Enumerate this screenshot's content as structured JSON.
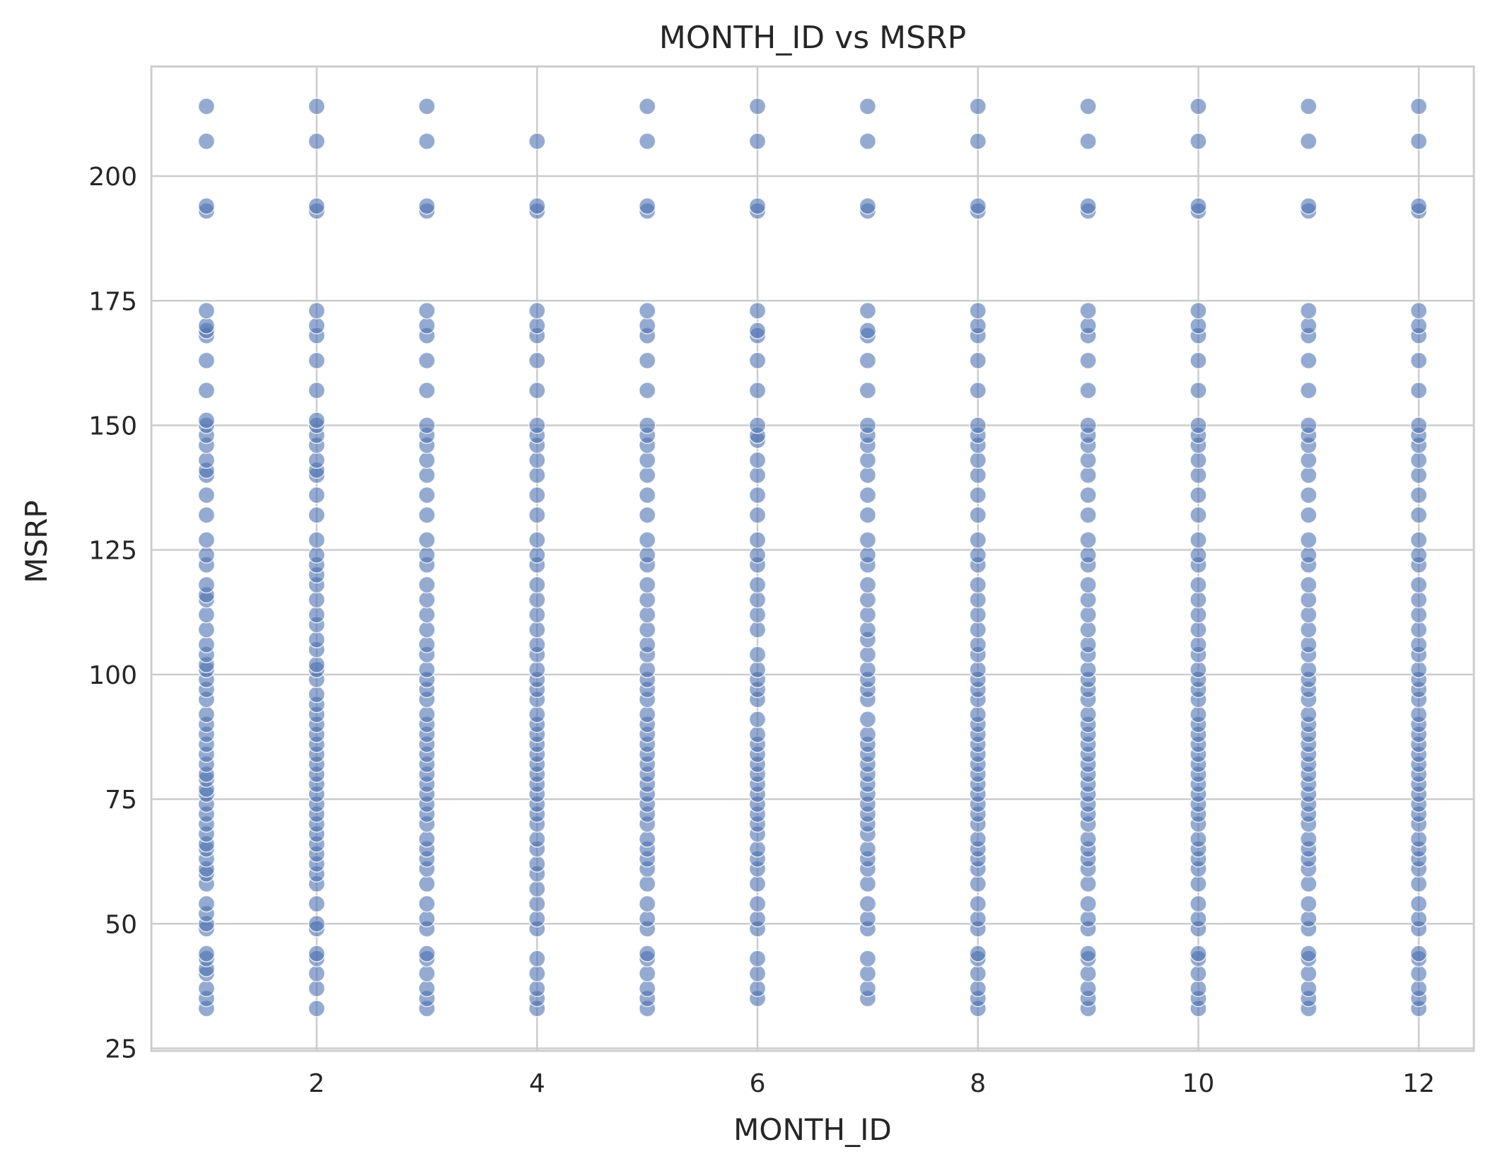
{
  "chart_data": {
    "type": "scatter",
    "title": "MONTH_ID vs MSRP",
    "xlabel": "MONTH_ID",
    "ylabel": "MSRP",
    "xlim": [
      0.5,
      12.5
    ],
    "ylim": [
      24.5,
      222
    ],
    "xticks": [
      2,
      4,
      6,
      8,
      10,
      12
    ],
    "yticks": [
      25,
      50,
      75,
      100,
      125,
      150,
      175,
      200
    ],
    "grid": true,
    "legend": "none",
    "marker_color": "#4c72b0",
    "marker_edge_color": "#ffffff",
    "marker_alpha": 0.6,
    "background_color": "#ffffff",
    "grid_color": "#cccccc",
    "spine_color": "#cccccc",
    "series": [
      {
        "x": 1,
        "y": [
          33,
          35,
          37,
          40,
          41,
          43,
          44,
          49,
          50,
          52,
          54,
          58,
          60,
          61,
          63,
          65,
          66,
          68,
          70,
          72,
          74,
          76,
          77,
          79,
          80,
          82,
          84,
          86,
          88,
          90,
          92,
          95,
          97,
          99,
          101,
          102,
          104,
          106,
          109,
          112,
          115,
          116,
          118,
          122,
          124,
          127,
          132,
          136,
          140,
          141,
          143,
          146,
          148,
          150,
          151,
          157,
          163,
          168,
          169,
          170,
          173,
          193,
          194,
          207,
          214
        ]
      },
      {
        "x": 2,
        "y": [
          33,
          37,
          40,
          43,
          44,
          49,
          50,
          54,
          58,
          60,
          62,
          64,
          66,
          68,
          70,
          72,
          74,
          76,
          78,
          80,
          82,
          84,
          86,
          88,
          90,
          92,
          94,
          96,
          99,
          101,
          102,
          105,
          107,
          110,
          112,
          115,
          118,
          120,
          122,
          124,
          127,
          132,
          136,
          140,
          141,
          143,
          146,
          148,
          150,
          151,
          157,
          163,
          168,
          170,
          173,
          193,
          194,
          207,
          214
        ]
      },
      {
        "x": 3,
        "y": [
          33,
          35,
          37,
          40,
          43,
          44,
          49,
          51,
          54,
          58,
          61,
          63,
          65,
          67,
          70,
          72,
          74,
          76,
          78,
          80,
          82,
          84,
          86,
          88,
          90,
          92,
          95,
          97,
          99,
          101,
          104,
          106,
          109,
          112,
          115,
          118,
          122,
          124,
          127,
          132,
          136,
          140,
          143,
          146,
          148,
          150,
          157,
          163,
          168,
          170,
          173,
          193,
          194,
          207,
          214
        ]
      },
      {
        "x": 4,
        "y": [
          33,
          35,
          37,
          40,
          43,
          49,
          51,
          54,
          57,
          60,
          62,
          65,
          67,
          70,
          72,
          74,
          76,
          78,
          80,
          82,
          84,
          86,
          88,
          90,
          92,
          95,
          97,
          99,
          101,
          104,
          106,
          109,
          112,
          115,
          118,
          122,
          124,
          127,
          132,
          136,
          140,
          143,
          146,
          148,
          150,
          157,
          163,
          168,
          170,
          173,
          193,
          194,
          207
        ]
      },
      {
        "x": 5,
        "y": [
          33,
          35,
          37,
          40,
          43,
          44,
          49,
          51,
          54,
          58,
          61,
          63,
          65,
          67,
          70,
          72,
          74,
          76,
          78,
          80,
          82,
          84,
          86,
          88,
          90,
          92,
          95,
          97,
          99,
          101,
          104,
          106,
          109,
          112,
          115,
          118,
          122,
          124,
          127,
          132,
          136,
          140,
          143,
          146,
          148,
          150,
          157,
          163,
          168,
          170,
          173,
          193,
          194,
          207,
          214
        ]
      },
      {
        "x": 6,
        "y": [
          35,
          37,
          40,
          43,
          49,
          51,
          54,
          58,
          61,
          63,
          65,
          68,
          70,
          72,
          74,
          76,
          78,
          80,
          82,
          84,
          86,
          88,
          91,
          95,
          97,
          99,
          101,
          104,
          109,
          112,
          115,
          118,
          122,
          124,
          127,
          132,
          136,
          140,
          143,
          147,
          148,
          150,
          157,
          163,
          168,
          169,
          173,
          193,
          194,
          207,
          214
        ]
      },
      {
        "x": 7,
        "y": [
          35,
          37,
          40,
          43,
          49,
          51,
          54,
          58,
          61,
          63,
          65,
          68,
          70,
          72,
          74,
          76,
          78,
          80,
          82,
          84,
          86,
          88,
          91,
          95,
          97,
          99,
          101,
          104,
          107,
          109,
          112,
          115,
          118,
          122,
          124,
          127,
          132,
          136,
          140,
          143,
          146,
          148,
          150,
          157,
          163,
          168,
          169,
          173,
          193,
          194,
          207,
          214
        ]
      },
      {
        "x": 8,
        "y": [
          33,
          35,
          37,
          40,
          43,
          44,
          49,
          51,
          54,
          58,
          61,
          63,
          65,
          67,
          70,
          72,
          74,
          76,
          78,
          80,
          82,
          84,
          86,
          88,
          90,
          92,
          95,
          97,
          99,
          101,
          104,
          106,
          109,
          112,
          115,
          118,
          122,
          124,
          127,
          132,
          136,
          140,
          143,
          146,
          148,
          150,
          157,
          163,
          168,
          170,
          173,
          193,
          194,
          207,
          214
        ]
      },
      {
        "x": 9,
        "y": [
          33,
          35,
          37,
          40,
          43,
          44,
          49,
          51,
          54,
          58,
          61,
          63,
          65,
          67,
          70,
          72,
          74,
          76,
          78,
          80,
          82,
          84,
          86,
          88,
          90,
          92,
          95,
          97,
          99,
          101,
          104,
          106,
          109,
          112,
          115,
          118,
          122,
          124,
          127,
          132,
          136,
          140,
          143,
          146,
          148,
          150,
          157,
          163,
          168,
          170,
          173,
          193,
          194,
          207,
          214
        ]
      },
      {
        "x": 10,
        "y": [
          33,
          35,
          37,
          40,
          43,
          44,
          49,
          51,
          54,
          58,
          61,
          63,
          65,
          67,
          70,
          72,
          74,
          76,
          78,
          80,
          82,
          84,
          86,
          88,
          90,
          92,
          95,
          97,
          99,
          101,
          104,
          106,
          109,
          112,
          115,
          118,
          122,
          124,
          127,
          132,
          136,
          140,
          143,
          146,
          148,
          150,
          157,
          163,
          168,
          170,
          173,
          193,
          194,
          207,
          214
        ]
      },
      {
        "x": 11,
        "y": [
          33,
          35,
          37,
          40,
          43,
          44,
          49,
          51,
          54,
          58,
          61,
          63,
          65,
          67,
          70,
          72,
          74,
          76,
          78,
          80,
          82,
          84,
          86,
          88,
          90,
          92,
          95,
          97,
          99,
          101,
          104,
          106,
          109,
          112,
          115,
          118,
          122,
          124,
          127,
          132,
          136,
          140,
          143,
          146,
          148,
          150,
          157,
          163,
          168,
          170,
          173,
          193,
          194,
          207,
          214
        ]
      },
      {
        "x": 12,
        "y": [
          33,
          35,
          37,
          40,
          43,
          44,
          49,
          51,
          54,
          58,
          61,
          63,
          65,
          67,
          70,
          72,
          74,
          76,
          78,
          80,
          82,
          84,
          86,
          88,
          90,
          92,
          95,
          97,
          99,
          101,
          104,
          106,
          109,
          112,
          115,
          118,
          122,
          124,
          127,
          132,
          136,
          140,
          143,
          146,
          148,
          150,
          157,
          163,
          168,
          170,
          173,
          193,
          194,
          207,
          214
        ]
      }
    ]
  }
}
